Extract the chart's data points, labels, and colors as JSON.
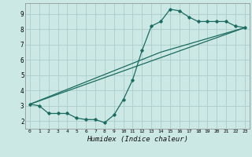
{
  "title": "",
  "xlabel": "Humidex (Indice chaleur)",
  "bg_color": "#cce8e4",
  "grid_color": "#aaccc8",
  "line_color": "#1a6b60",
  "xlim": [
    -0.5,
    23.5
  ],
  "ylim": [
    1.5,
    9.7
  ],
  "xticks": [
    0,
    1,
    2,
    3,
    4,
    5,
    6,
    7,
    8,
    9,
    10,
    11,
    12,
    13,
    14,
    15,
    16,
    17,
    18,
    19,
    20,
    21,
    22,
    23
  ],
  "yticks": [
    2,
    3,
    4,
    5,
    6,
    7,
    8,
    9
  ],
  "line1_x": [
    0,
    1,
    2,
    3,
    4,
    5,
    6,
    7,
    8,
    9,
    10,
    11,
    12,
    13,
    14,
    15,
    16,
    17,
    18,
    19,
    20,
    21,
    22,
    23
  ],
  "line1_y": [
    3.1,
    3.0,
    2.5,
    2.5,
    2.5,
    2.2,
    2.1,
    2.1,
    1.9,
    2.4,
    3.4,
    4.7,
    6.6,
    8.2,
    8.5,
    9.3,
    9.2,
    8.8,
    8.5,
    8.5,
    8.5,
    8.5,
    8.2,
    8.1
  ],
  "line2_x": [
    0,
    23
  ],
  "line2_y": [
    3.1,
    8.1
  ],
  "line3_x": [
    0,
    14,
    23
  ],
  "line3_y": [
    3.1,
    6.5,
    8.1
  ],
  "marker_size": 1.8,
  "line_width": 0.9
}
